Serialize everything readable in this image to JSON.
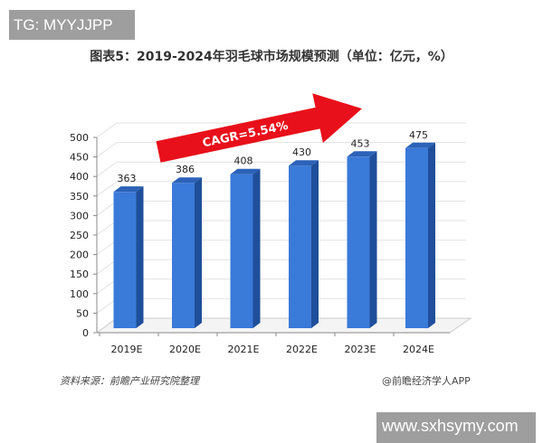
{
  "watermark_top": "TG: MYYJJPP",
  "watermark_bottom": "www.sxhsymy.com",
  "source": "资料来源：前瞻产业研究院整理",
  "credit": "@前瞻经济学人APP",
  "colors": {
    "bar_front": "#3a7ad8",
    "bar_side": "#1f4f9a",
    "bar_top": "#2c62b8",
    "arrow": "#e8101a"
  },
  "chart_data": {
    "type": "bar",
    "title": "图表5：2019-2024年羽毛球市场规模预测（单位：亿元，%）",
    "categories": [
      "2019E",
      "2020E",
      "2021E",
      "2022E",
      "2023E",
      "2024E"
    ],
    "values": [
      363,
      386,
      408,
      430,
      453,
      475
    ],
    "data_labels": [
      "363",
      "386",
      "408",
      "430",
      "453",
      "475"
    ],
    "ylim": [
      0,
      500
    ],
    "yticks": [
      "0",
      "50",
      "100",
      "150",
      "200",
      "250",
      "300",
      "350",
      "400",
      "450",
      "500"
    ],
    "grid": true,
    "style": "3d",
    "annotation": "CAGR=5.54%"
  }
}
